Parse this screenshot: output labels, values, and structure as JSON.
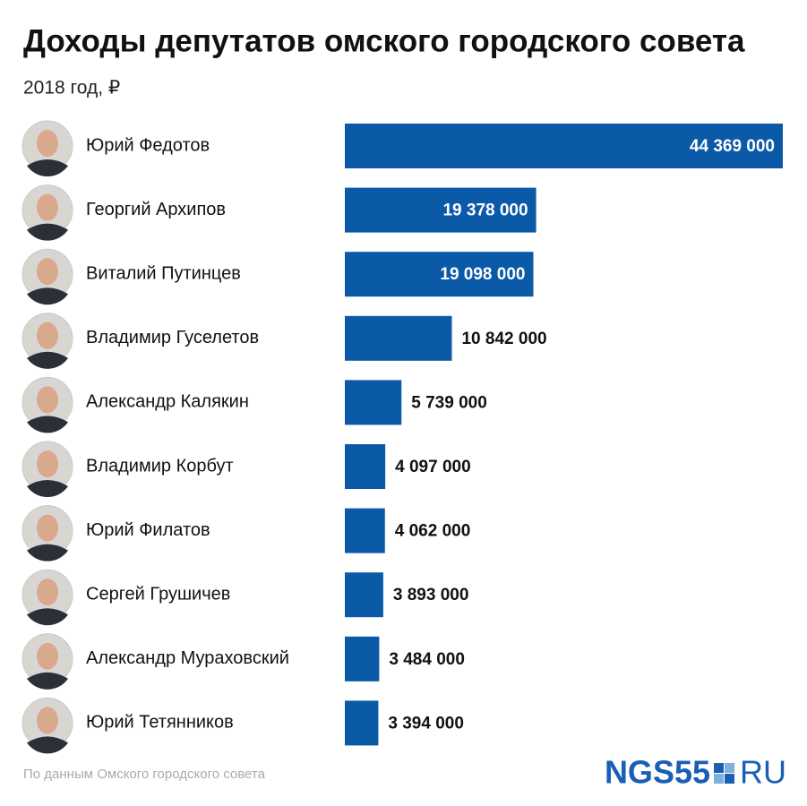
{
  "chart_data": {
    "type": "bar",
    "orientation": "horizontal",
    "title": "Доходы депутатов омского городского совета",
    "subtitle": "2018 год, ₽",
    "categories": [
      "Юрий Федотов",
      "Георгий Архипов",
      "Виталий Путинцев",
      "Владимир Гуселетов",
      "Александр Калякин",
      "Владимир Корбут",
      "Юрий Филатов",
      "Сергей Грушичев",
      "Александр Мураховский",
      "Юрий Тетянников"
    ],
    "values": [
      44369000,
      19378000,
      19098000,
      10842000,
      5739000,
      4097000,
      4062000,
      3893000,
      3484000,
      3394000
    ],
    "value_labels": [
      "44 369 000",
      "19 378 000",
      "19 098 000",
      "10 842 000",
      "5 739 000",
      "4 097 000",
      "4 062 000",
      "3 893 000",
      "3 484 000",
      "3 394 000"
    ],
    "color": "#0b5aa8",
    "source": "По данным Омского городского совета",
    "logo": {
      "main": "NGS55",
      "suffix": "RU"
    }
  }
}
